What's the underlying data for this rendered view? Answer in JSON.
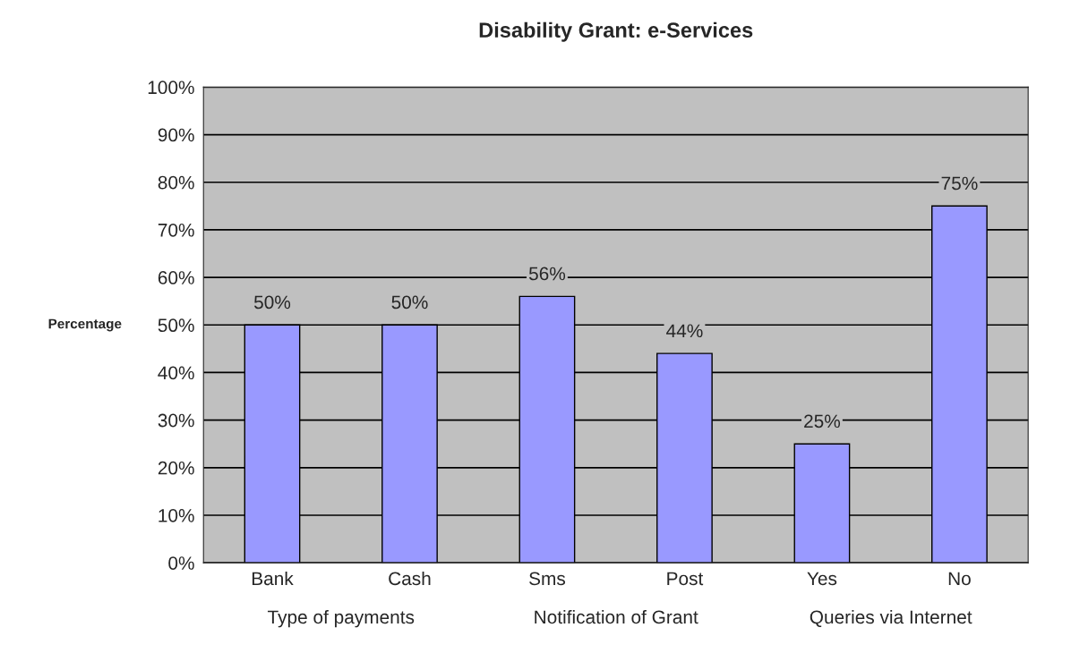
{
  "chart_data": {
    "type": "bar",
    "title": "Disability Grant: e-Services",
    "ylabel": "Percentage",
    "categories": [
      "Bank",
      "Cash",
      "Sms",
      "Post",
      "Yes",
      "No"
    ],
    "values": [
      50,
      50,
      56,
      44,
      25,
      75
    ],
    "color": "#9999ff",
    "value_labels": [
      "50%",
      "50%",
      "56%",
      "44%",
      "25%",
      "75%"
    ],
    "annotations": [
      "Type of payments",
      "Notification of Grant",
      "Queries via Internet"
    ],
    "ylim": [
      0,
      100
    ],
    "yticks": [
      {
        "value": 0,
        "label": "0%"
      },
      {
        "value": 10,
        "label": "10%"
      },
      {
        "value": 20,
        "label": "20%"
      },
      {
        "value": 30,
        "label": "30%"
      },
      {
        "value": 40,
        "label": "40%"
      },
      {
        "value": 50,
        "label": "50%"
      },
      {
        "value": 60,
        "label": "60%"
      },
      {
        "value": 70,
        "label": "70%"
      },
      {
        "value": 80,
        "label": "80%"
      },
      {
        "value": 90,
        "label": "90%"
      },
      {
        "value": 100,
        "label": "100%"
      }
    ],
    "grid": "y",
    "legend": false
  }
}
